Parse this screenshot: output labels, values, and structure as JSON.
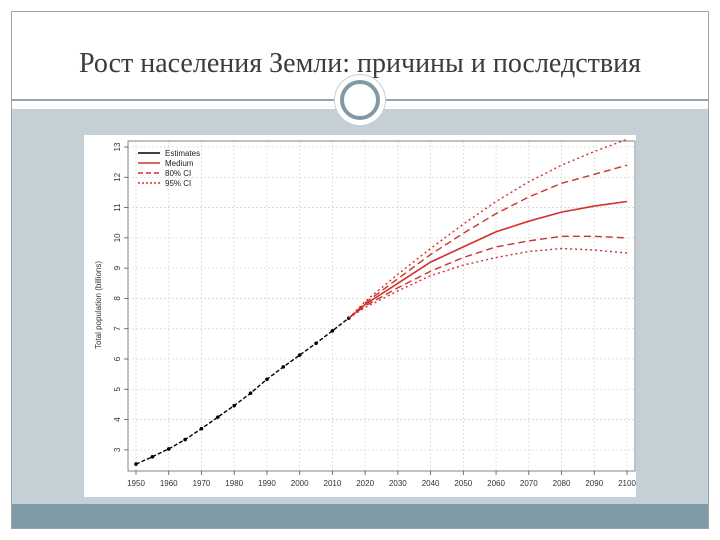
{
  "slide": {
    "title": "Рост населения Земли: причины и последствия",
    "colors": {
      "content_bg": "#c5d0d6",
      "footer_band": "#7f9aa6",
      "accent_circle": "#7f9aa6",
      "estimate_line": "#000000",
      "projection_line": "#d0312d"
    }
  },
  "chart_data": {
    "type": "line",
    "title": "",
    "xlabel": "",
    "ylabel": "Total population (billions)",
    "xlim": [
      1950,
      2100
    ],
    "ylim": [
      2.5,
      13
    ],
    "x_ticks": [
      1950,
      1960,
      1970,
      1980,
      1990,
      2000,
      2010,
      2020,
      2030,
      2040,
      2050,
      2060,
      2070,
      2080,
      2090,
      2100
    ],
    "y_ticks": [
      3,
      4,
      5,
      6,
      7,
      8,
      9,
      10,
      11,
      12,
      13
    ],
    "grid": true,
    "legend_position": "top-left",
    "legend": [
      "Estimates",
      "Medium",
      "80% CI",
      "95% CI"
    ],
    "series": [
      {
        "name": "Estimates",
        "style": "solid-with-points",
        "color": "#000000",
        "x": [
          1950,
          1955,
          1960,
          1965,
          1970,
          1975,
          1980,
          1985,
          1990,
          1995,
          2000,
          2005,
          2010,
          2015
        ],
        "y": [
          2.53,
          2.77,
          3.03,
          3.34,
          3.7,
          4.08,
          4.46,
          4.87,
          5.33,
          5.74,
          6.13,
          6.52,
          6.93,
          7.35
        ]
      },
      {
        "name": "Medium",
        "style": "solid",
        "color": "#d0312d",
        "x": [
          2015,
          2020,
          2030,
          2040,
          2050,
          2060,
          2070,
          2080,
          2090,
          2100
        ],
        "y": [
          7.35,
          7.8,
          8.5,
          9.2,
          9.7,
          10.2,
          10.55,
          10.85,
          11.05,
          11.2
        ]
      },
      {
        "name": "80% CI",
        "style": "dashed",
        "color": "#d0312d",
        "x": [
          2015,
          2020,
          2030,
          2040,
          2050,
          2060,
          2070,
          2080,
          2090,
          2100
        ],
        "upper": [
          7.35,
          7.85,
          8.65,
          9.45,
          10.15,
          10.8,
          11.35,
          11.8,
          12.1,
          12.4
        ],
        "lower": [
          7.35,
          7.75,
          8.35,
          8.9,
          9.35,
          9.7,
          9.9,
          10.05,
          10.05,
          10.0
        ]
      },
      {
        "name": "95% CI",
        "style": "dotted",
        "color": "#d0312d",
        "x": [
          2015,
          2020,
          2030,
          2040,
          2050,
          2060,
          2070,
          2080,
          2090,
          2100
        ],
        "upper": [
          7.35,
          7.9,
          8.8,
          9.65,
          10.45,
          11.2,
          11.85,
          12.4,
          12.85,
          13.25
        ],
        "lower": [
          7.35,
          7.7,
          8.25,
          8.75,
          9.1,
          9.35,
          9.55,
          9.65,
          9.6,
          9.5
        ]
      }
    ]
  }
}
